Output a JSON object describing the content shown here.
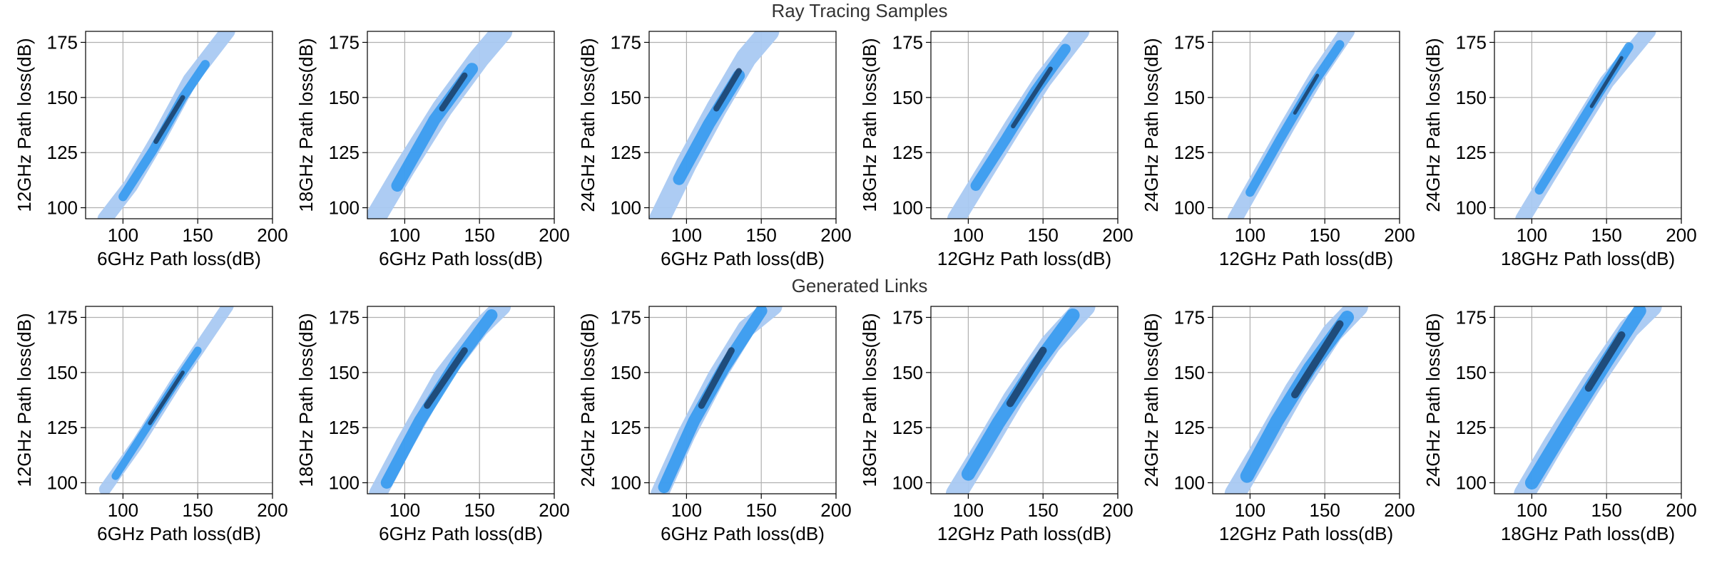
{
  "rows": [
    {
      "title": "Ray Tracing Samples"
    },
    {
      "title": "Generated Links"
    }
  ],
  "colors": {
    "light": "#a9c9f2",
    "mid": "#2e96ee",
    "dark": "#1a3d66",
    "grid": "#b0b0b0"
  },
  "chart_data": [
    {
      "type": "contour",
      "row": "Ray Tracing Samples",
      "xlabel": "6GHz Path loss(dB)",
      "ylabel": "12GHz Path loss(dB)",
      "xlim": [
        75,
        200
      ],
      "ylim": [
        95,
        180
      ],
      "xticks": [
        100,
        150,
        200
      ],
      "yticks": [
        100,
        125,
        150,
        175
      ],
      "grid": true,
      "bands": [
        {
          "level": "light",
          "centerline": [
            [
              88,
              95
            ],
            [
              105,
              110
            ],
            [
              125,
              133
            ],
            [
              145,
              158
            ],
            [
              170,
              180
            ]
          ],
          "width": 5
        },
        {
          "level": "mid",
          "centerline": [
            [
              100,
              105
            ],
            [
              120,
              126
            ],
            [
              140,
              150
            ],
            [
              155,
              165
            ]
          ],
          "width": 3
        },
        {
          "level": "dark",
          "centerline": [
            [
              122,
              130
            ],
            [
              140,
              150
            ]
          ],
          "width": 1.6
        }
      ]
    },
    {
      "type": "contour",
      "row": "Ray Tracing Samples",
      "xlabel": "6GHz Path loss(dB)",
      "ylabel": "18GHz Path loss(dB)",
      "xlim": [
        75,
        200
      ],
      "ylim": [
        95,
        180
      ],
      "xticks": [
        100,
        150,
        200
      ],
      "yticks": [
        100,
        125,
        150,
        175
      ],
      "grid": true,
      "bands": [
        {
          "level": "light",
          "centerline": [
            [
              80,
              95
            ],
            [
              100,
              118
            ],
            [
              125,
              145
            ],
            [
              150,
              168
            ],
            [
              165,
              180
            ]
          ],
          "width": 7
        },
        {
          "level": "mid",
          "centerline": [
            [
              95,
              110
            ],
            [
              120,
              140
            ],
            [
              145,
              163
            ]
          ],
          "width": 4
        },
        {
          "level": "dark",
          "centerline": [
            [
              125,
              145
            ],
            [
              140,
              160
            ]
          ],
          "width": 2
        }
      ]
    },
    {
      "type": "contour",
      "row": "Ray Tracing Samples",
      "xlabel": "6GHz Path loss(dB)",
      "ylabel": "24GHz Path loss(dB)",
      "xlim": [
        75,
        200
      ],
      "ylim": [
        95,
        180
      ],
      "xticks": [
        100,
        150,
        200
      ],
      "yticks": [
        100,
        125,
        150,
        175
      ],
      "grid": true,
      "bands": [
        {
          "level": "light",
          "centerline": [
            [
              82,
              95
            ],
            [
              100,
              120
            ],
            [
              120,
              145
            ],
            [
              140,
              168
            ],
            [
              155,
              180
            ]
          ],
          "width": 7
        },
        {
          "level": "mid",
          "centerline": [
            [
              95,
              113
            ],
            [
              115,
              138
            ],
            [
              135,
              160
            ]
          ],
          "width": 4
        },
        {
          "level": "dark",
          "centerline": [
            [
              120,
              145
            ],
            [
              135,
              162
            ]
          ],
          "width": 2
        }
      ]
    },
    {
      "type": "contour",
      "row": "Ray Tracing Samples",
      "xlabel": "12GHz Path loss(dB)",
      "ylabel": "18GHz Path loss(dB)",
      "xlim": [
        75,
        200
      ],
      "ylim": [
        95,
        180
      ],
      "xticks": [
        100,
        150,
        200
      ],
      "yticks": [
        100,
        125,
        150,
        175
      ],
      "grid": true,
      "bands": [
        {
          "level": "light",
          "centerline": [
            [
              92,
              95
            ],
            [
              110,
              115
            ],
            [
              130,
              137
            ],
            [
              150,
              158
            ],
            [
              175,
              180
            ]
          ],
          "width": 6
        },
        {
          "level": "mid",
          "centerline": [
            [
              105,
              110
            ],
            [
              125,
              131
            ],
            [
              145,
              153
            ],
            [
              165,
              172
            ]
          ],
          "width": 3.5
        },
        {
          "level": "dark",
          "centerline": [
            [
              130,
              137
            ],
            [
              155,
              163
            ]
          ],
          "width": 1.5
        }
      ]
    },
    {
      "type": "contour",
      "row": "Ray Tracing Samples",
      "xlabel": "12GHz Path loss(dB)",
      "ylabel": "24GHz Path loss(dB)",
      "xlim": [
        75,
        200
      ],
      "ylim": [
        95,
        180
      ],
      "xticks": [
        100,
        150,
        200
      ],
      "yticks": [
        100,
        125,
        150,
        175
      ],
      "grid": true,
      "bands": [
        {
          "level": "light",
          "centerline": [
            [
              90,
              95
            ],
            [
              105,
              113
            ],
            [
              125,
              137
            ],
            [
              145,
              160
            ],
            [
              165,
              180
            ]
          ],
          "width": 5
        },
        {
          "level": "mid",
          "centerline": [
            [
              100,
              107
            ],
            [
              120,
              131
            ],
            [
              140,
              154
            ],
            [
              160,
              174
            ]
          ],
          "width": 3
        },
        {
          "level": "dark",
          "centerline": [
            [
              130,
              143
            ],
            [
              145,
              160
            ]
          ],
          "width": 1.2
        }
      ]
    },
    {
      "type": "contour",
      "row": "Ray Tracing Samples",
      "xlabel": "18GHz Path loss(dB)",
      "ylabel": "24GHz Path loss(dB)",
      "xlim": [
        75,
        200
      ],
      "ylim": [
        95,
        180
      ],
      "xticks": [
        100,
        150,
        200
      ],
      "yticks": [
        100,
        125,
        150,
        175
      ],
      "grid": true,
      "bands": [
        {
          "level": "light",
          "centerline": [
            [
              94,
              95
            ],
            [
              110,
              113
            ],
            [
              130,
              135
            ],
            [
              150,
              157
            ],
            [
              178,
              180
            ]
          ],
          "width": 5
        },
        {
          "level": "mid",
          "centerline": [
            [
              105,
              108
            ],
            [
              125,
              130
            ],
            [
              145,
              152
            ],
            [
              165,
              173
            ]
          ],
          "width": 3
        },
        {
          "level": "dark",
          "centerline": [
            [
              140,
              146
            ],
            [
              160,
              168
            ]
          ],
          "width": 1.2
        }
      ]
    },
    {
      "type": "contour",
      "row": "Generated Links",
      "xlabel": "6GHz Path loss(dB)",
      "ylabel": "12GHz Path loss(dB)",
      "xlim": [
        75,
        200
      ],
      "ylim": [
        95,
        180
      ],
      "xticks": [
        100,
        150,
        200
      ],
      "yticks": [
        100,
        125,
        150,
        175
      ],
      "grid": true,
      "bands": [
        {
          "level": "light",
          "centerline": [
            [
              88,
              97
            ],
            [
              110,
              118
            ],
            [
              135,
              145
            ],
            [
              155,
              165
            ],
            [
              170,
              180
            ]
          ],
          "width": 4
        },
        {
          "level": "mid",
          "centerline": [
            [
              95,
              103
            ],
            [
              115,
              124
            ],
            [
              135,
              145
            ],
            [
              150,
              160
            ]
          ],
          "width": 2.6
        },
        {
          "level": "dark",
          "centerline": [
            [
              118,
              127
            ],
            [
              140,
              150
            ]
          ],
          "width": 1.3
        }
      ]
    },
    {
      "type": "contour",
      "row": "Generated Links",
      "xlabel": "6GHz Path loss(dB)",
      "ylabel": "18GHz Path loss(dB)",
      "xlim": [
        75,
        200
      ],
      "ylim": [
        95,
        180
      ],
      "xticks": [
        100,
        150,
        200
      ],
      "yticks": [
        100,
        125,
        150,
        175
      ],
      "grid": true,
      "bands": [
        {
          "level": "light",
          "centerline": [
            [
              82,
              95
            ],
            [
              100,
              118
            ],
            [
              125,
              148
            ],
            [
              150,
              170
            ],
            [
              165,
              180
            ]
          ],
          "width": 6
        },
        {
          "level": "mid",
          "centerline": [
            [
              88,
              100
            ],
            [
              110,
              128
            ],
            [
              135,
              155
            ],
            [
              158,
              176
            ]
          ],
          "width": 4
        },
        {
          "level": "dark",
          "centerline": [
            [
              115,
              135
            ],
            [
              140,
              160
            ]
          ],
          "width": 2.2
        }
      ]
    },
    {
      "type": "contour",
      "row": "Generated Links",
      "xlabel": "6GHz Path loss(dB)",
      "ylabel": "24GHz Path loss(dB)",
      "xlim": [
        75,
        200
      ],
      "ylim": [
        95,
        180
      ],
      "xticks": [
        100,
        150,
        200
      ],
      "yticks": [
        100,
        125,
        150,
        175
      ],
      "grid": true,
      "bands": [
        {
          "level": "light",
          "centerline": [
            [
              82,
              95
            ],
            [
              100,
              122
            ],
            [
              120,
              148
            ],
            [
              140,
              170
            ],
            [
              158,
              180
            ]
          ],
          "width": 6
        },
        {
          "level": "mid",
          "centerline": [
            [
              85,
              98
            ],
            [
              105,
              128
            ],
            [
              125,
              152
            ],
            [
              150,
              178
            ]
          ],
          "width": 4
        },
        {
          "level": "dark",
          "centerline": [
            [
              110,
              135
            ],
            [
              130,
              160
            ]
          ],
          "width": 2.2
        }
      ]
    },
    {
      "type": "contour",
      "row": "Generated Links",
      "xlabel": "12GHz Path loss(dB)",
      "ylabel": "18GHz Path loss(dB)",
      "xlim": [
        75,
        200
      ],
      "ylim": [
        95,
        180
      ],
      "xticks": [
        100,
        150,
        200
      ],
      "yticks": [
        100,
        125,
        150,
        175
      ],
      "grid": true,
      "bands": [
        {
          "level": "light",
          "centerline": [
            [
              92,
              95
            ],
            [
              110,
              115
            ],
            [
              130,
              138
            ],
            [
              155,
              163
            ],
            [
              178,
              180
            ]
          ],
          "width": 7
        },
        {
          "level": "mid",
          "centerline": [
            [
              100,
              104
            ],
            [
              120,
              127
            ],
            [
              145,
              153
            ],
            [
              170,
              176
            ]
          ],
          "width": 4.5
        },
        {
          "level": "dark",
          "centerline": [
            [
              128,
              136
            ],
            [
              150,
              160
            ]
          ],
          "width": 2.5
        }
      ]
    },
    {
      "type": "contour",
      "row": "Generated Links",
      "xlabel": "12GHz Path loss(dB)",
      "ylabel": "24GHz Path loss(dB)",
      "xlim": [
        75,
        200
      ],
      "ylim": [
        95,
        180
      ],
      "xticks": [
        100,
        150,
        200
      ],
      "yticks": [
        100,
        125,
        150,
        175
      ],
      "grid": true,
      "bands": [
        {
          "level": "light",
          "centerline": [
            [
              90,
              95
            ],
            [
              110,
              118
            ],
            [
              130,
              142
            ],
            [
              155,
              168
            ],
            [
              172,
              180
            ]
          ],
          "width": 7
        },
        {
          "level": "mid",
          "centerline": [
            [
              98,
              103
            ],
            [
              118,
              128
            ],
            [
              140,
              152
            ],
            [
              165,
              175
            ]
          ],
          "width": 4.5
        },
        {
          "level": "dark",
          "centerline": [
            [
              130,
              140
            ],
            [
              160,
              172
            ]
          ],
          "width": 2.5
        }
      ]
    },
    {
      "type": "contour",
      "row": "Generated Links",
      "xlabel": "18GHz Path loss(dB)",
      "ylabel": "24GHz Path loss(dB)",
      "xlim": [
        75,
        200
      ],
      "ylim": [
        95,
        180
      ],
      "xticks": [
        100,
        150,
        200
      ],
      "yticks": [
        100,
        125,
        150,
        175
      ],
      "grid": true,
      "bands": [
        {
          "level": "light",
          "centerline": [
            [
              95,
              95
            ],
            [
              115,
              118
            ],
            [
              140,
              145
            ],
            [
              165,
              170
            ],
            [
              180,
              180
            ]
          ],
          "width": 7
        },
        {
          "level": "mid",
          "centerline": [
            [
              100,
              100
            ],
            [
              125,
              128
            ],
            [
              150,
              155
            ],
            [
              172,
              178
            ]
          ],
          "width": 4.5
        },
        {
          "level": "dark",
          "centerline": [
            [
              138,
              143
            ],
            [
              160,
              167
            ]
          ],
          "width": 2.5
        }
      ]
    }
  ]
}
